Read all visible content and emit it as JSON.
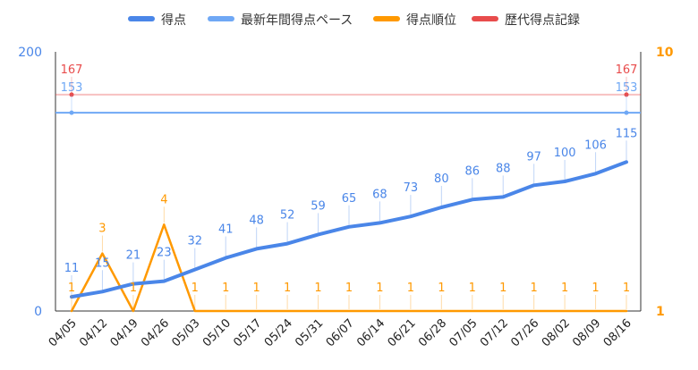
{
  "chart_data": {
    "type": "line",
    "categories": [
      "04/05",
      "04/12",
      "04/19",
      "04/26",
      "05/03",
      "05/10",
      "05/17",
      "05/24",
      "05/31",
      "06/07",
      "06/14",
      "06/21",
      "06/28",
      "07/05",
      "07/12",
      "07/26",
      "08/02",
      "08/09",
      "08/16"
    ],
    "series": [
      {
        "name": "得点",
        "axis": "left",
        "color": "#4a86e8",
        "values": [
          11,
          15,
          21,
          23,
          32,
          41,
          48,
          52,
          59,
          65,
          68,
          73,
          80,
          86,
          88,
          97,
          100,
          106,
          115
        ],
        "labels": [
          "11",
          "15",
          "21",
          "23",
          "32",
          "41",
          "48",
          "52",
          "59",
          "65",
          "68",
          "73",
          "80",
          "86",
          "88",
          "97",
          "100",
          "106",
          "115"
        ]
      },
      {
        "name": "最新年間得点ペース",
        "axis": "left",
        "color": "#6fa8f5",
        "values": [
          153,
          153,
          153,
          153,
          153,
          153,
          153,
          153,
          153,
          153,
          153,
          153,
          153,
          153,
          153,
          153,
          153,
          153,
          153
        ],
        "labels": [
          "153",
          "",
          "",
          "",
          "",
          "",
          "",
          "",
          "",
          "",
          "",
          "",
          "",
          "",
          "",
          "",
          "",
          "",
          "153"
        ]
      },
      {
        "name": "得点順位",
        "axis": "right",
        "color": "#ff9900",
        "values": [
          1,
          3,
          1,
          4,
          1,
          1,
          1,
          1,
          1,
          1,
          1,
          1,
          1,
          1,
          1,
          1,
          1,
          1,
          1
        ],
        "labels": [
          "1",
          "3",
          "1",
          "4",
          "1",
          "1",
          "1",
          "1",
          "1",
          "1",
          "1",
          "1",
          "1",
          "1",
          "1",
          "1",
          "1",
          "1",
          "1"
        ]
      },
      {
        "name": "歴代得点記録",
        "axis": "left",
        "color": "#e84c4c",
        "values": [
          167,
          167,
          167,
          167,
          167,
          167,
          167,
          167,
          167,
          167,
          167,
          167,
          167,
          167,
          167,
          167,
          167,
          167,
          167
        ],
        "labels": [
          "167",
          "",
          "",
          "",
          "",
          "",
          "",
          "",
          "",
          "",
          "",
          "",
          "",
          "",
          "",
          "",
          "",
          "",
          "167"
        ]
      }
    ],
    "left_axis": {
      "ylim": [
        0,
        200
      ],
      "tick_labels": [
        "0",
        "200"
      ],
      "color": "#4a86e8"
    },
    "right_axis": {
      "ylim": [
        1,
        10
      ],
      "tick_labels": [
        "1",
        "10"
      ],
      "color": "#ff9900"
    },
    "legend_position": "top-center",
    "grid": false
  }
}
